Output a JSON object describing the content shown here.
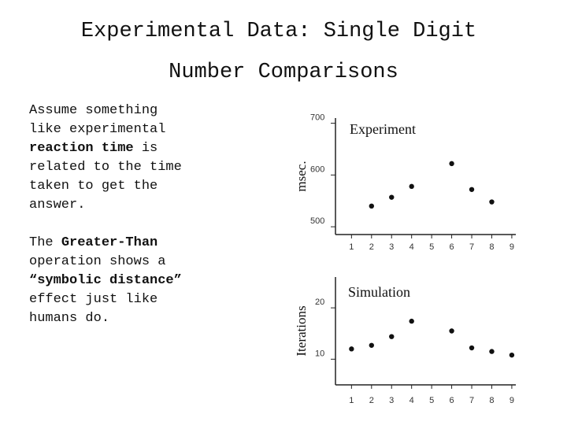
{
  "slide": {
    "title_line1": "Experimental Data: Single Digit",
    "title_line2": "Number Comparisons",
    "p1": {
      "line1": "Assume something",
      "line2": "like experimental",
      "line3_bold": "reaction time",
      "line3_rest": " is",
      "line4": "related to the time",
      "line5": "taken to get the",
      "line6": "answer."
    },
    "p2": {
      "line1_pre": "The ",
      "line1_bold": "Greater-Than",
      "line2": "operation shows a",
      "line3_bold": "“symbolic distance”",
      "line4": "effect just like",
      "line5": "humans do."
    }
  },
  "chart_data": [
    {
      "type": "scatter",
      "title": "Experiment",
      "ylabel": "msec.",
      "xlabel": "",
      "x_ticks": [
        "1",
        "2",
        "3",
        "4",
        "5",
        "6",
        "7",
        "8",
        "9"
      ],
      "y_ticks": [
        "500",
        "600",
        "700"
      ],
      "ylim": [
        485,
        710
      ],
      "xlim": [
        0.2,
        9.2
      ],
      "x": [
        2,
        3,
        4,
        6,
        7,
        8
      ],
      "y": [
        540,
        557,
        578,
        622,
        572,
        548
      ]
    },
    {
      "type": "scatter",
      "title": "Simulation",
      "ylabel": "Iterations",
      "xlabel": "",
      "x_ticks": [
        "1",
        "2",
        "3",
        "4",
        "5",
        "6",
        "7",
        "8",
        "9"
      ],
      "y_ticks": [
        "10",
        "20"
      ],
      "ylim": [
        5,
        26
      ],
      "xlim": [
        0.2,
        9.2
      ],
      "x": [
        1,
        2,
        3,
        4,
        6,
        7,
        8,
        9
      ],
      "y": [
        12.0,
        12.7,
        14.4,
        17.4,
        15.5,
        12.2,
        11.5,
        10.8
      ]
    }
  ]
}
